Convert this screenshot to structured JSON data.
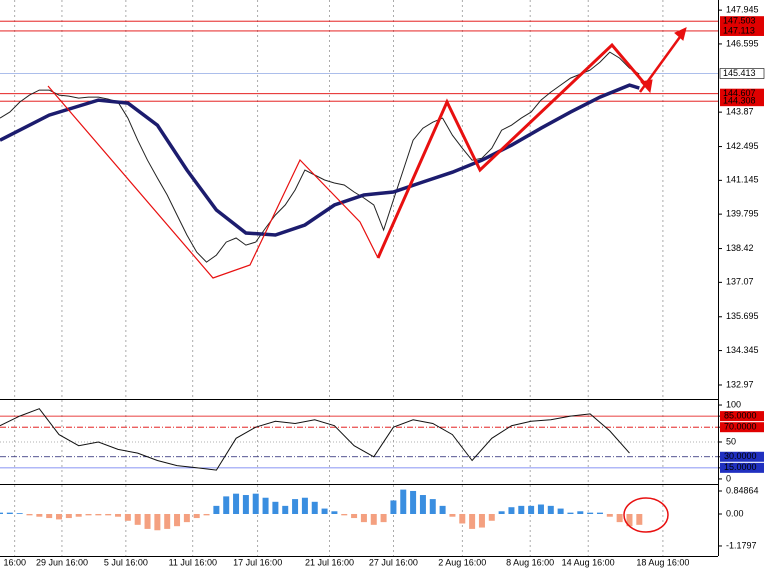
{
  "chart_data": [
    {
      "type": "line",
      "xlim": [
        0,
        73
      ],
      "xticks": [
        {
          "value": 1.5,
          "label": "16:00"
        },
        {
          "value": 6.3,
          "label": "29 Jun 16:00"
        },
        {
          "value": 12.8,
          "label": "5 Jul 16:00"
        },
        {
          "value": 19.6,
          "label": "11 Jul 16:00"
        },
        {
          "value": 26.2,
          "label": "17 Jul 16:00"
        },
        {
          "value": 33.5,
          "label": "21 Jul 16:00"
        },
        {
          "value": 40,
          "label": "27 Jul 16:00"
        },
        {
          "value": 47,
          "label": "2 Aug 16:00"
        },
        {
          "value": 53.9,
          "label": "8 Aug 16:00"
        },
        {
          "value": 59.8,
          "label": "14 Aug 16:00"
        },
        {
          "value": 67.4,
          "label": "18 Aug 16:00"
        }
      ],
      "ylim": [
        132.45,
        148.35
      ],
      "yticks": [
        147.945,
        146.595,
        143.87,
        142.495,
        141.145,
        139.795,
        138.42,
        137.07,
        135.695,
        134.345,
        132.97
      ],
      "grid": true,
      "levels": [
        {
          "value": 147.503,
          "color": "#e00000"
        },
        {
          "value": 147.113,
          "color": "#e00000"
        },
        {
          "value": 145.413,
          "color": "#a0b4e8"
        },
        {
          "value": 144.607,
          "color": "#e00000"
        },
        {
          "value": 144.308,
          "color": "#e00000"
        }
      ],
      "series": [
        {
          "color": "#222222",
          "values": [
            143.63,
            143.87,
            144.27,
            144.55,
            144.75,
            144.75,
            144.55,
            144.51,
            144.43,
            144.47,
            144.47,
            144.39,
            144.27,
            143.63,
            142.75,
            141.95,
            141.24,
            140.56,
            139.76,
            138.96,
            138.28,
            137.88,
            138.16,
            138.68,
            138.84,
            138.56,
            138.68,
            139.24,
            139.76,
            140.16,
            140.76,
            141.56,
            141.36,
            141.16,
            141.04,
            140.96,
            140.68,
            140.44,
            140.16,
            139.16,
            140.36,
            141.56,
            142.75,
            143.23,
            143.47,
            143.63,
            142.95,
            142.43,
            141.95,
            142.03,
            142.43,
            143.15,
            143.35,
            143.63,
            143.87,
            144.35,
            144.67,
            144.95,
            145.23,
            145.39,
            145.55,
            145.87,
            146.27,
            146.03,
            145.63,
            145.39
          ]
        },
        {
          "color": "#1c1c6e",
          "x": [
            0,
            5,
            10,
            13,
            16,
            19,
            22,
            25,
            28,
            31,
            34,
            37,
            40,
            43,
            46,
            49,
            52,
            55,
            58,
            61,
            64,
            65
          ],
          "values": [
            142.75,
            143.75,
            144.35,
            144.23,
            143.35,
            141.56,
            139.96,
            139.04,
            138.96,
            139.36,
            140.16,
            140.56,
            140.68,
            141.08,
            141.47,
            141.95,
            142.55,
            143.23,
            143.87,
            144.47,
            144.95,
            144.83
          ]
        }
      ]
    },
    {
      "type": "line",
      "xlim": [
        0,
        73
      ],
      "ylim": [
        -5.5,
        106.8
      ],
      "yticks": [
        100,
        {
          "value": 85,
          "label": "85.0000"
        },
        {
          "value": 70,
          "label": "70.0000"
        },
        50,
        {
          "value": 30,
          "label": "30.0000"
        },
        {
          "value": 15,
          "label": "15.0000"
        },
        0
      ],
      "series": [
        {
          "color": "#111111",
          "x": [
            0,
            2,
            4,
            6,
            8,
            10,
            12,
            14,
            16,
            18,
            20,
            22,
            24,
            26,
            28,
            30,
            32,
            34,
            36,
            38,
            40,
            42,
            44,
            46,
            48,
            50,
            52,
            54,
            56,
            58,
            60,
            62,
            64
          ],
          "values": [
            72,
            85,
            95,
            60,
            45,
            50,
            40,
            35,
            25,
            18,
            15,
            12,
            55,
            70,
            78,
            75,
            80,
            72,
            45,
            30,
            70,
            80,
            75,
            60,
            25,
            55,
            72,
            78,
            80,
            85,
            88,
            65,
            35
          ]
        }
      ]
    },
    {
      "type": "bar",
      "xlim": [
        0,
        73
      ],
      "ylim": [
        -1.55,
        1.07
      ],
      "yticks": [
        0.84864,
        {
          "value": 0,
          "label": "0.00"
        },
        -1.1797
      ],
      "up_color": "#3a8ee0",
      "down_color": "#f4a080",
      "values": [
        0.05,
        0.05,
        0.03,
        -0.05,
        -0.1,
        -0.15,
        -0.2,
        -0.15,
        -0.1,
        -0.05,
        -0.05,
        -0.05,
        -0.1,
        -0.25,
        -0.4,
        -0.55,
        -0.6,
        -0.55,
        -0.45,
        -0.3,
        -0.15,
        -0.05,
        0.3,
        0.65,
        0.75,
        0.7,
        0.75,
        0.6,
        0.45,
        0.3,
        0.55,
        0.6,
        0.45,
        0.2,
        0.1,
        -0.05,
        -0.15,
        -0.3,
        -0.4,
        -0.3,
        0.5,
        0.9,
        0.85,
        0.7,
        0.55,
        0.3,
        -0.1,
        -0.35,
        -0.55,
        -0.5,
        -0.25,
        0.1,
        0.25,
        0.3,
        0.3,
        0.35,
        0.3,
        0.2,
        0.05,
        0.1,
        0.05,
        0.05,
        -0.1,
        -0.3,
        -0.45,
        -0.4
      ]
    }
  ]
}
